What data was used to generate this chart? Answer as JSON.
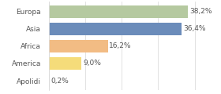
{
  "categories": [
    "Europa",
    "Asia",
    "Africa",
    "America",
    "Apolidi"
  ],
  "values": [
    38.2,
    36.4,
    16.2,
    9.0,
    0.2
  ],
  "labels": [
    "38,2%",
    "36,4%",
    "16,2%",
    "9,0%",
    "0,2%"
  ],
  "bar_colors": [
    "#b5c9a0",
    "#6b8cba",
    "#f2bc84",
    "#f5dc7a",
    "#cccccc"
  ],
  "background_color": "#ffffff",
  "xlim": [
    0,
    46
  ],
  "bar_height": 0.72,
  "label_fontsize": 6.5,
  "tick_fontsize": 6.5,
  "grid_ticks": [
    0,
    10,
    20,
    30,
    40
  ],
  "grid_color": "#dddddd",
  "text_color": "#555555"
}
